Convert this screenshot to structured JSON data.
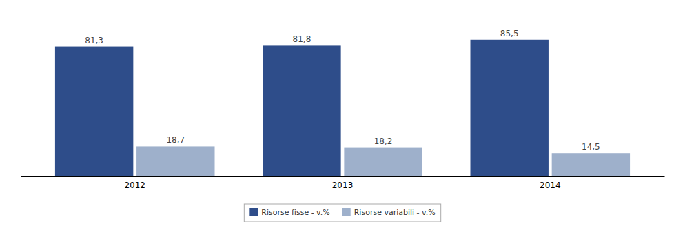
{
  "chart_data": {
    "type": "bar",
    "categories": [
      "2012",
      "2013",
      "2014"
    ],
    "series": [
      {
        "name": "Risorse fisse - v.%",
        "color": "#2E4D8A",
        "values": [
          81.3,
          81.8,
          85.5
        ],
        "value_labels": [
          "81,3",
          "81,8",
          "85,5"
        ]
      },
      {
        "name": "Risorse variabili - v.%",
        "color": "#9EB0CB",
        "values": [
          18.7,
          18.2,
          14.5
        ],
        "value_labels": [
          "18,7",
          "18,2",
          "14,5"
        ]
      }
    ],
    "ylim": [
      0,
      100
    ],
    "grid": false,
    "legend": "bottom",
    "data_labels": true,
    "tick_labels": "x"
  }
}
